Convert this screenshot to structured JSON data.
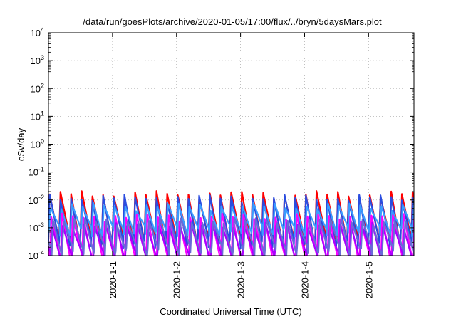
{
  "chart_data": {
    "type": "line",
    "title": "/data/run/goesPlots/archive/2020-01-05/17:00/flux/../bryn/5daysMars.plot",
    "xlabel": "Coordinated Universal Time (UTC)",
    "ylabel": "cSv/day",
    "y_scale": "log",
    "ylim": [
      0.0001,
      10000
    ],
    "y_ticks": [
      {
        "value": 0.0001,
        "base": "10",
        "exp": "-4"
      },
      {
        "value": 0.001,
        "base": "10",
        "exp": "-3"
      },
      {
        "value": 0.01,
        "base": "10",
        "exp": "-2"
      },
      {
        "value": 0.1,
        "base": "10",
        "exp": "-1"
      },
      {
        "value": 1,
        "base": "10",
        "exp": "0"
      },
      {
        "value": 10,
        "base": "10",
        "exp": "1"
      },
      {
        "value": 100,
        "base": "10",
        "exp": "2"
      },
      {
        "value": 1000,
        "base": "10",
        "exp": "3"
      },
      {
        "value": 10000,
        "base": "10",
        "exp": "4"
      }
    ],
    "xlim": [
      "2019-12-31T00:00",
      "2020-01-05T17:00"
    ],
    "x_ticks": [
      {
        "value": "2020-01-01T00:00",
        "label": "2020-1-1"
      },
      {
        "value": "2020-01-02T00:00",
        "label": "2020-1-2"
      },
      {
        "value": "2020-01-03T00:00",
        "label": "2020-1-3"
      },
      {
        "value": "2020-01-04T00:00",
        "label": "2020-1-4"
      },
      {
        "value": "2020-01-05T00:00",
        "label": "2020-1-5"
      }
    ],
    "grid": true,
    "cycles_per_day": 6,
    "series": [
      {
        "color": "#ff0000",
        "peak": 0.016,
        "trough": 0.0004,
        "peak_phase": 0.0
      },
      {
        "color": "#2a4de0",
        "peak": 0.012,
        "trough": 0.0003,
        "peak_phase": 0.0
      },
      {
        "color": "#3a9cff",
        "peak": 0.006,
        "trough": 0.0008,
        "peak_phase": 0.08
      },
      {
        "color": "#ff00ff",
        "peak": 0.0025,
        "trough": 8e-05,
        "peak_phase": 0.15
      },
      {
        "color": "#aa00ff",
        "peak": 0.0012,
        "trough": 9e-05,
        "peak_phase": 0.22
      },
      {
        "color": "#6a6ad8",
        "peak": 0.0018,
        "trough": 0.00015,
        "peak_phase": 0.3
      }
    ]
  }
}
